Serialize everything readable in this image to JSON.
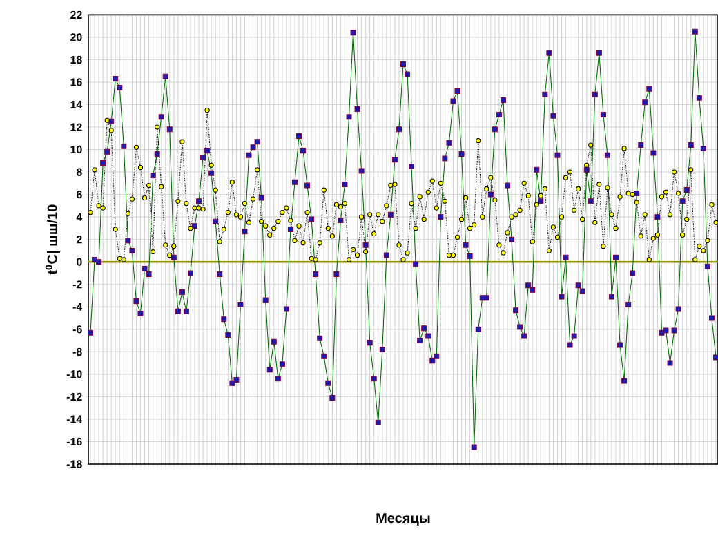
{
  "chart_data": {
    "type": "line",
    "xlabel": "Месяцы",
    "ylabel": "t$^{0}$C| шш/10",
    "categories": [
      null,
      null,
      null,
      null,
      null,
      null,
      null,
      null,
      null,
      null,
      null,
      null,
      null,
      null,
      null,
      null,
      null,
      null,
      null,
      null,
      null,
      null,
      null,
      null,
      null,
      null,
      null,
      null,
      null,
      null,
      null,
      null,
      null,
      null,
      null,
      null,
      null,
      null,
      null,
      null,
      null,
      null,
      null,
      null,
      null,
      null,
      null,
      null,
      null,
      null,
      null,
      null,
      null,
      null,
      null,
      null,
      null,
      null,
      null,
      null,
      null,
      null,
      null,
      null,
      null,
      null,
      null,
      null,
      null,
      null,
      null,
      null,
      null,
      null,
      null,
      null,
      null,
      null,
      null,
      null,
      null,
      null,
      null,
      null,
      null,
      null,
      null,
      null,
      null,
      null,
      null,
      null,
      null,
      null,
      null,
      null,
      null,
      null,
      null,
      null,
      null,
      null,
      null,
      null,
      null,
      null,
      null,
      null,
      null,
      null,
      null,
      null,
      null,
      null,
      null,
      null,
      null,
      null,
      null,
      null,
      null,
      null,
      null,
      null,
      null,
      null,
      null,
      null,
      null,
      null,
      null,
      null,
      null,
      null,
      null,
      null,
      null,
      null,
      null,
      null,
      null,
      null,
      null,
      null,
      null,
      null,
      null,
      null,
      null,
      null,
      null
    ],
    "series": [
      {
        "color": "#1a1ab0",
        "marker": "square",
        "line_style": "solid",
        "values": [
          -6.3,
          0.2,
          0.0,
          8.8,
          9.8,
          12.5,
          16.3,
          15.5,
          10.3,
          1.9,
          1.0,
          -3.5,
          -4.6,
          -0.6,
          -1.1,
          7.7,
          9.6,
          12.9,
          16.5,
          11.8,
          0.4,
          -4.4,
          -2.7,
          -4.4,
          -1.0,
          3.2,
          5.4,
          9.3,
          9.9,
          7.9,
          3.6,
          -1.1,
          -5.1,
          -6.5,
          -10.8,
          -10.5,
          -3.8,
          2.7,
          9.5,
          10.2,
          10.7,
          5.7,
          -3.4,
          -9.6,
          -7.1,
          -10.4,
          -9.1,
          -4.2,
          2.9,
          7.1,
          11.2,
          9.9,
          6.8,
          3.8,
          -1.1,
          -6.8,
          -8.4,
          -10.8,
          -12.1,
          -1.1,
          3.7,
          6.9,
          12.9,
          20.4,
          13.6,
          8.1,
          1.5,
          -7.2,
          -10.4,
          -14.3,
          -7.8,
          0.6,
          4.2,
          9.1,
          11.8,
          17.6,
          16.7,
          8.5,
          -0.2,
          -7.0,
          -5.9,
          -6.6,
          -8.8,
          -8.4,
          4.0,
          9.2,
          10.6,
          14.3,
          15.2,
          9.6,
          1.5,
          0.5,
          -16.5,
          -6.0,
          -3.2,
          -3.2,
          6.0,
          11.8,
          13.1,
          14.4,
          6.8,
          2.0,
          -4.3,
          -5.8,
          -6.6,
          -2.1,
          -2.5,
          8.2,
          5.4,
          14.9,
          18.6,
          13.0,
          9.5,
          -3.1,
          0.4,
          -7.4,
          -6.6,
          -2.1,
          -2.6,
          8.2,
          5.4,
          14.9,
          18.6,
          13.1,
          9.5,
          -3.1,
          0.4,
          -7.4,
          -10.6,
          -3.8,
          -1.0,
          6.1,
          10.4,
          14.2,
          15.4,
          9.7,
          4.0,
          -6.3,
          -6.1,
          -9.0,
          -6.1,
          -4.2,
          5.4,
          6.4,
          10.4,
          20.5,
          14.6,
          10.1,
          -0.4,
          -5.0,
          -8.5
        ]
      },
      {
        "color": "#ffff00",
        "marker": "circle",
        "line_style": "dotted",
        "values": [
          4.4,
          8.2,
          5.0,
          4.8,
          12.6,
          11.7,
          2.9,
          0.3,
          0.2,
          4.3,
          5.6,
          10.2,
          8.4,
          5.7,
          6.8,
          0.9,
          12.0,
          6.7,
          1.5,
          0.6,
          1.4,
          5.4,
          10.7,
          5.2,
          3.0,
          4.8,
          4.8,
          4.7,
          13.5,
          8.6,
          6.4,
          1.8,
          2.9,
          4.4,
          7.1,
          4.2,
          4.0,
          5.2,
          3.5,
          5.6,
          8.2,
          3.6,
          3.2,
          2.4,
          3.0,
          3.6,
          4.4,
          4.8,
          3.7,
          1.9,
          3.2,
          1.7,
          4.4,
          0.3,
          0.2,
          1.7,
          6.4,
          3.0,
          2.3,
          5.1,
          4.9,
          5.2,
          0.2,
          1.1,
          0.6,
          4.0,
          0.9,
          4.2,
          2.5,
          4.2,
          3.6,
          5.0,
          6.8,
          6.9,
          1.5,
          0.2,
          0.8,
          5.2,
          3.0,
          5.8,
          3.8,
          6.2,
          7.2,
          4.8,
          7.0,
          5.4,
          0.6,
          0.6,
          2.2,
          3.8,
          5.7,
          3.0,
          3.3,
          10.8,
          4.0,
          6.5,
          7.5,
          5.5,
          1.5,
          0.8,
          2.6,
          4.0,
          4.2,
          4.6,
          7.0,
          5.9,
          1.8,
          5.1,
          5.9,
          6.5,
          1.0,
          3.1,
          2.2,
          4.0,
          7.5,
          8.0,
          4.6,
          6.5,
          3.8,
          8.6,
          10.4,
          3.5,
          6.9,
          1.4,
          6.6,
          4.2,
          3.0,
          5.8,
          10.1,
          6.1,
          6.0,
          5.3,
          2.3,
          4.2,
          0.2,
          2.1,
          2.4,
          5.8,
          6.2,
          4.2,
          8.0,
          6.1,
          2.4,
          3.8,
          8.2,
          0.2,
          1.4,
          1.0,
          1.9,
          5.1,
          3.5
        ]
      }
    ],
    "ylim": [
      -18,
      22
    ],
    "yticks": [
      -18,
      -16,
      -14,
      -12,
      -10,
      -8,
      -6,
      -4,
      -2,
      0,
      2,
      4,
      6,
      8,
      10,
      12,
      14,
      16,
      18,
      20,
      22
    ],
    "grid": true,
    "ref_lines": [
      {
        "axis": "y",
        "value": 0,
        "color": "#999900",
        "line_style": "solid"
      }
    ]
  }
}
